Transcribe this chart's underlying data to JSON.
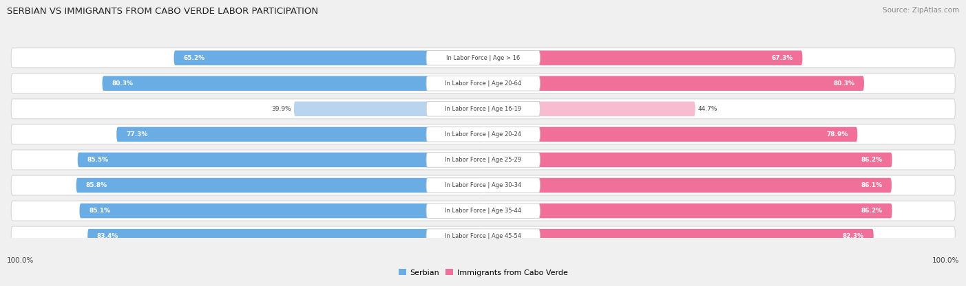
{
  "title": "SERBIAN VS IMMIGRANTS FROM CABO VERDE LABOR PARTICIPATION",
  "source": "Source: ZipAtlas.com",
  "categories": [
    "In Labor Force | Age > 16",
    "In Labor Force | Age 20-64",
    "In Labor Force | Age 16-19",
    "In Labor Force | Age 20-24",
    "In Labor Force | Age 25-29",
    "In Labor Force | Age 30-34",
    "In Labor Force | Age 35-44",
    "In Labor Force | Age 45-54"
  ],
  "serbian_values": [
    65.2,
    80.3,
    39.9,
    77.3,
    85.5,
    85.8,
    85.1,
    83.4
  ],
  "cabo_verde_values": [
    67.3,
    80.3,
    44.7,
    78.9,
    86.2,
    86.1,
    86.2,
    82.3
  ],
  "serbian_color": "#6aade4",
  "serbian_color_light": "#b8d4ee",
  "cabo_verde_color": "#f0709a",
  "cabo_verde_color_light": "#f8bcd0",
  "background_color": "#f0f0f0",
  "row_bg_color": "#ffffff",
  "row_border_color": "#d8d8d8",
  "center_label_bg": "#ffffff",
  "center_label_border": "#cccccc",
  "text_dark": "#444444",
  "text_white": "#ffffff",
  "max_value": 100.0,
  "legend_serbian": "Serbian",
  "legend_cabo": "Immigrants from Cabo Verde",
  "bottom_left_label": "100.0%",
  "bottom_right_label": "100.0%",
  "threshold_for_dark_label": 55
}
